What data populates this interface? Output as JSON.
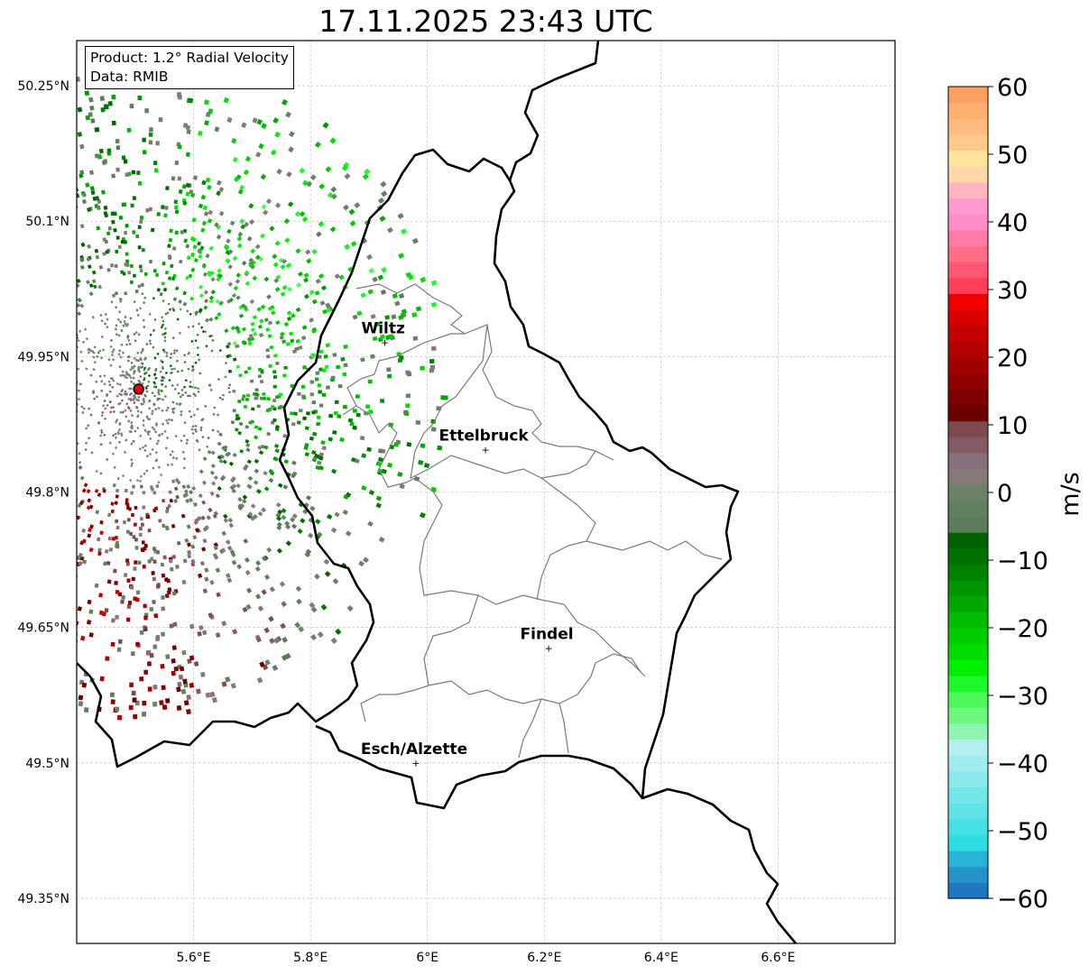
{
  "title": "17.11.2025 23:43 UTC",
  "info_box": {
    "product": "Product: 1.2° Radial Velocity",
    "data": "Data: RMIB"
  },
  "chart_data": {
    "type": "map",
    "title": "17.11.2025 23:43 UTC",
    "lon_range": [
      5.4,
      6.8
    ],
    "lat_range": [
      49.3,
      50.3
    ],
    "lon_ticks": [
      {
        "v": 5.6,
        "label": "5.6°E"
      },
      {
        "v": 5.8,
        "label": "5.8°E"
      },
      {
        "v": 6.0,
        "label": "6°E"
      },
      {
        "v": 6.2,
        "label": "6.2°E"
      },
      {
        "v": 6.4,
        "label": "6.4°E"
      },
      {
        "v": 6.6,
        "label": "6.6°E"
      }
    ],
    "lat_ticks": [
      {
        "v": 50.25,
        "label": "50.25°N"
      },
      {
        "v": 50.1,
        "label": "50.1°N"
      },
      {
        "v": 49.95,
        "label": "49.95°N"
      },
      {
        "v": 49.8,
        "label": "49.8°N"
      },
      {
        "v": 49.65,
        "label": "49.65°N"
      },
      {
        "v": 49.5,
        "label": "49.5°N"
      },
      {
        "v": 49.35,
        "label": "49.35°N"
      }
    ],
    "grid": true,
    "radar_site": {
      "lon": 5.506,
      "lat": 49.914
    },
    "cities": [
      {
        "name": "Wiltz",
        "lon": 5.932,
        "lat": 49.966
      },
      {
        "name": "Ettelbruck",
        "lon": 6.104,
        "lat": 49.847
      },
      {
        "name": "Findel",
        "lon": 6.212,
        "lat": 49.627
      },
      {
        "name": "Esch/Alzette",
        "lon": 5.985,
        "lat": 49.5
      }
    ],
    "colorbar": {
      "label": "m/s",
      "range": [
        -60,
        60
      ],
      "ticks": [
        {
          "v": 60,
          "label": "60"
        },
        {
          "v": 50,
          "label": "50"
        },
        {
          "v": 40,
          "label": "40"
        },
        {
          "v": 30,
          "label": "30"
        },
        {
          "v": 20,
          "label": "20"
        },
        {
          "v": 10,
          "label": "10"
        },
        {
          "v": 0,
          "label": "0"
        },
        {
          "v": -10,
          "label": "−10"
        },
        {
          "v": -20,
          "label": "−20"
        },
        {
          "v": -30,
          "label": "−30"
        },
        {
          "v": -40,
          "label": "−40"
        },
        {
          "v": -50,
          "label": "−50"
        },
        {
          "v": -60,
          "label": "−60"
        }
      ],
      "colors_low_to_high": [
        "#1f77c0",
        "#2393c9",
        "#29b4d6",
        "#2edce2",
        "#45dfe4",
        "#5fe3e6",
        "#74e6e8",
        "#8ae9ea",
        "#9eecee",
        "#b3eff0",
        "#8ff5b0",
        "#6df77e",
        "#4ff85a",
        "#1ef82a",
        "#00f000",
        "#00dd00",
        "#00cc00",
        "#00bb00",
        "#00a800",
        "#009500",
        "#008200",
        "#007000",
        "#006200",
        "#5b7b59",
        "#61805f",
        "#6b8268",
        "#85797a",
        "#86707a",
        "#845a64",
        "#7d4a50",
        "#6b0000",
        "#7e0000",
        "#8f0000",
        "#a00000",
        "#b20000",
        "#c40000",
        "#d80000",
        "#f00000",
        "#ff3f5a",
        "#ff5672",
        "#ff6d86",
        "#ff7ca8",
        "#ff8ccb",
        "#ff9ad0",
        "#ffb6c0",
        "#ffd7a8",
        "#ffe59a",
        "#ffc98a",
        "#ffbc7e",
        "#ffaf70",
        "#ffa060"
      ]
    }
  }
}
